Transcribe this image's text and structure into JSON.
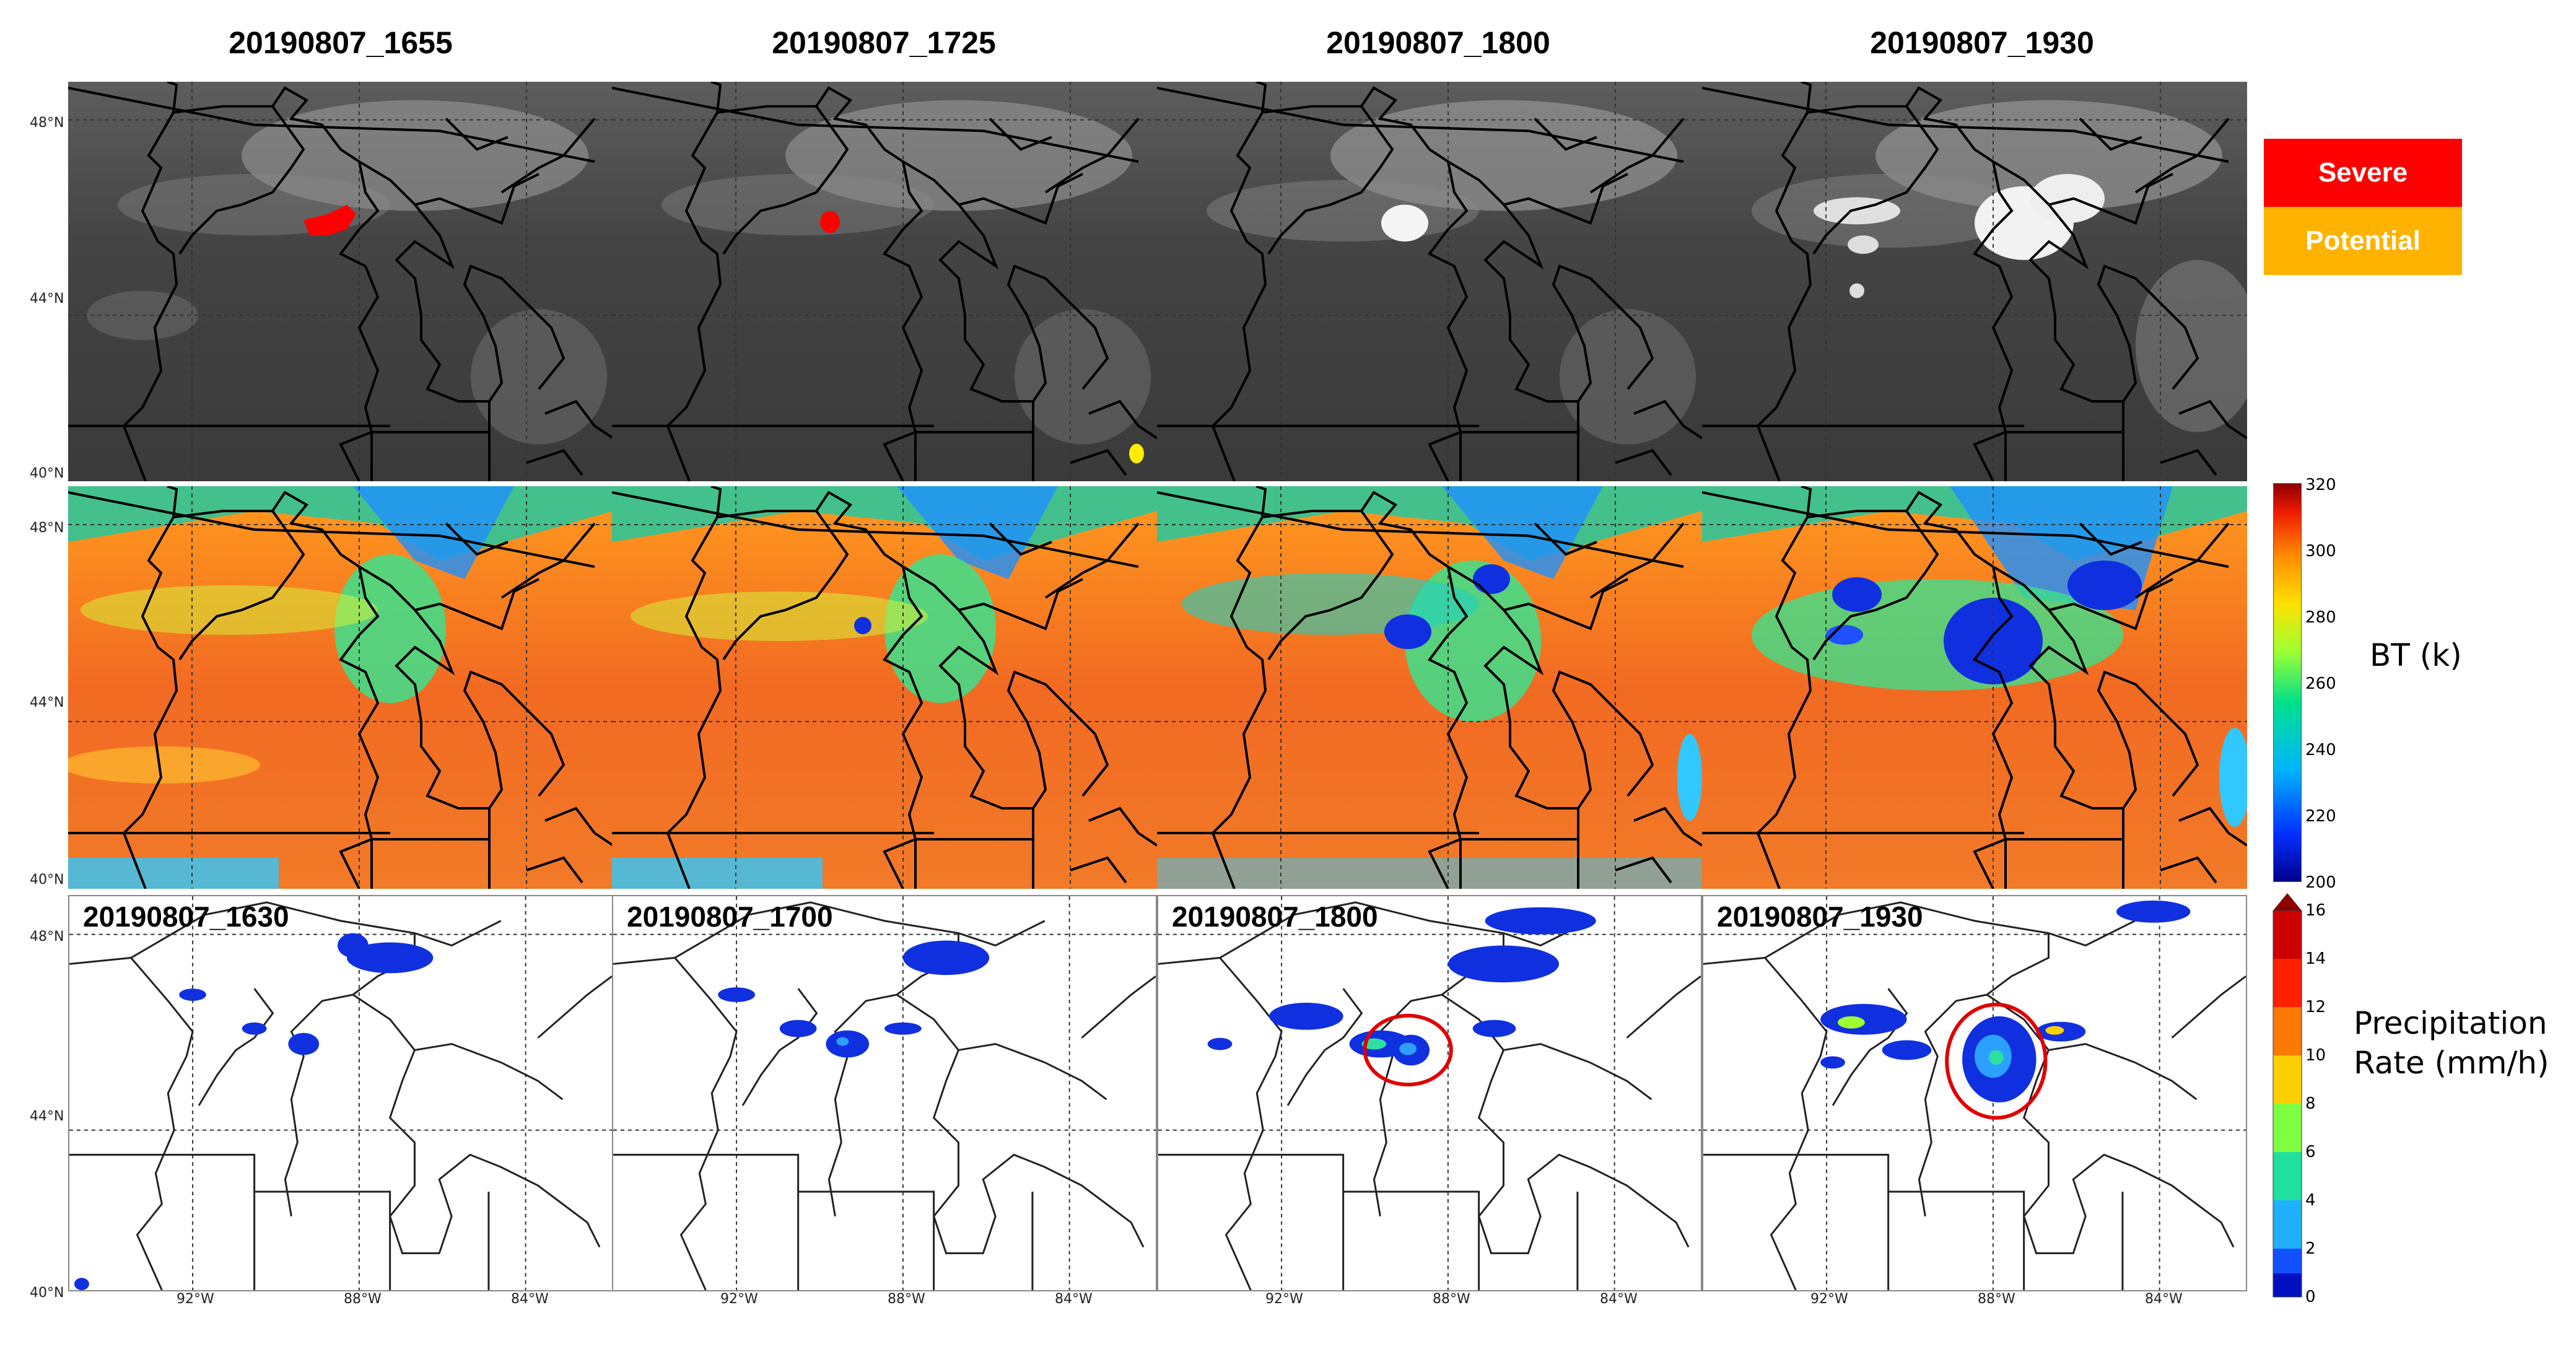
{
  "column_titles": [
    "20190807_1655",
    "20190807_1725",
    "20190807_1800",
    "20190807_1930"
  ],
  "lat_labels": [
    "48°N",
    "44°N",
    "40°N"
  ],
  "lon_labels": [
    "92°W",
    "88°W",
    "84°W"
  ],
  "precip_panel_times": [
    "20190807_1630",
    "20190807_1700",
    "20190807_1800",
    "20190807_1930"
  ],
  "legend": {
    "severe": {
      "label": "Severe",
      "color": "#ff0000"
    },
    "potential": {
      "label": "Potential",
      "color": "#ffb300"
    }
  },
  "bt_colorbar": {
    "label": "BT (k)",
    "ticks": [
      "320",
      "300",
      "280",
      "260",
      "240",
      "220",
      "200"
    ]
  },
  "precip_colorbar": {
    "label_line1": "Precipitation",
    "label_line2": "Rate (mm/h)",
    "ticks": [
      "16",
      "14",
      "12",
      "10",
      "8",
      "6",
      "4",
      "2",
      "0"
    ]
  }
}
